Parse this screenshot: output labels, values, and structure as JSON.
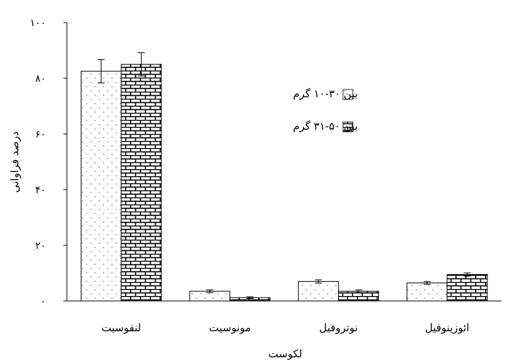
{
  "chart_data": {
    "type": "bar",
    "title": "",
    "xlabel": "لکوست",
    "ylabel": "درصد فراوانی",
    "ylim": [
      0,
      100
    ],
    "yticks": [
      0,
      20,
      40,
      60,
      80,
      100
    ],
    "ytick_labels": [
      "۰",
      "۲۰",
      "۴۰",
      "۶۰",
      "۸۰",
      "۱۰۰"
    ],
    "categories": [
      "لنفوسیت",
      "مونوسیت",
      "نوتروفیل",
      "ائوزینوفیل"
    ],
    "series": [
      {
        "name": "بین ۳۰-۱۰ گرم",
        "pattern": "dots",
        "values": [
          82.5,
          3.5,
          7.0,
          6.5
        ],
        "errors": [
          4.2,
          0.5,
          0.6,
          0.5
        ]
      },
      {
        "name": "بین ۵۰-۳۱ گرم",
        "pattern": "bricks",
        "values": [
          85.0,
          1.2,
          3.5,
          9.5
        ],
        "errors": [
          4.2,
          0.3,
          0.5,
          0.6
        ]
      }
    ],
    "legend_position": "right",
    "grid": false,
    "colors": {
      "bar_fill": "#ffffff",
      "dots": "#8a8aa0",
      "bricks": "#000000",
      "axis": "#000000"
    }
  }
}
